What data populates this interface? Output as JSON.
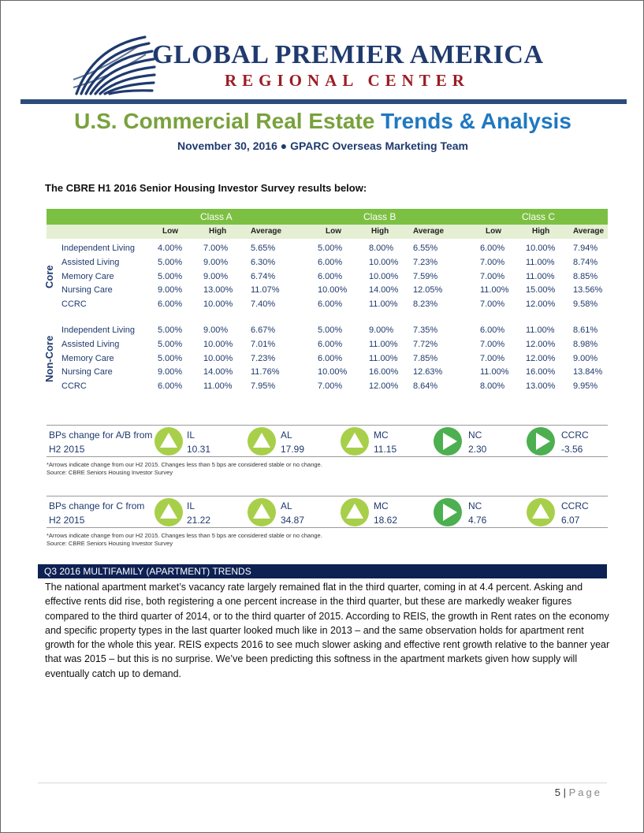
{
  "header": {
    "org_name": "GLOBAL PREMIER AMERICA",
    "org_sub": "REGIONAL CENTER",
    "title_part1": "U.S. Commercial Real Estate",
    "title_part2": "Trends & Analysis",
    "subtitle": "November 30, 2016 ● GPARC Overseas Marketing Team"
  },
  "colors": {
    "brand_navy": "#1f3a6e",
    "brand_red": "#9b1c22",
    "green": "#79a13d",
    "blue": "#1f78c1",
    "table_green": "#7cc043",
    "up_arrow": "#a8cf4a",
    "right_arrow": "#4caf50"
  },
  "intro": "The CBRE H1 2016 Senior Housing Investor Survey results below:",
  "survey": {
    "classes": [
      "Class A",
      "Class B",
      "Class C"
    ],
    "subheads": [
      "Low",
      "High",
      "Average"
    ],
    "groups": [
      {
        "label": "Core",
        "rows": [
          {
            "name": "Independent Living",
            "vals": [
              "4.00%",
              "7.00%",
              "5.65%",
              "5.00%",
              "8.00%",
              "6.55%",
              "6.00%",
              "10.00%",
              "7.94%"
            ]
          },
          {
            "name": "Assisted Living",
            "vals": [
              "5.00%",
              "9.00%",
              "6.30%",
              "6.00%",
              "10.00%",
              "7.23%",
              "7.00%",
              "11.00%",
              "8.74%"
            ]
          },
          {
            "name": "Memory Care",
            "vals": [
              "5.00%",
              "9.00%",
              "6.74%",
              "6.00%",
              "10.00%",
              "7.59%",
              "7.00%",
              "11.00%",
              "8.85%"
            ]
          },
          {
            "name": "Nursing Care",
            "vals": [
              "9.00%",
              "13.00%",
              "11.07%",
              "10.00%",
              "14.00%",
              "12.05%",
              "11.00%",
              "15.00%",
              "13.56%"
            ]
          },
          {
            "name": "CCRC",
            "vals": [
              "6.00%",
              "10.00%",
              "7.40%",
              "6.00%",
              "11.00%",
              "8.23%",
              "7.00%",
              "12.00%",
              "9.58%"
            ]
          }
        ]
      },
      {
        "label": "Non-Core",
        "rows": [
          {
            "name": "Independent Living",
            "vals": [
              "5.00%",
              "9.00%",
              "6.67%",
              "5.00%",
              "9.00%",
              "7.35%",
              "6.00%",
              "11.00%",
              "8.61%"
            ]
          },
          {
            "name": "Assisted Living",
            "vals": [
              "5.00%",
              "10.00%",
              "7.01%",
              "6.00%",
              "11.00%",
              "7.72%",
              "7.00%",
              "12.00%",
              "8.98%"
            ]
          },
          {
            "name": "Memory Care",
            "vals": [
              "5.00%",
              "10.00%",
              "7.23%",
              "6.00%",
              "11.00%",
              "7.85%",
              "7.00%",
              "12.00%",
              "9.00%"
            ]
          },
          {
            "name": "Nursing Care",
            "vals": [
              "9.00%",
              "14.00%",
              "11.76%",
              "10.00%",
              "16.00%",
              "12.63%",
              "11.00%",
              "16.00%",
              "13.84%"
            ]
          },
          {
            "name": "CCRC",
            "vals": [
              "6.00%",
              "11.00%",
              "7.95%",
              "7.00%",
              "12.00%",
              "8.64%",
              "8.00%",
              "13.00%",
              "9.95%"
            ]
          }
        ]
      }
    ]
  },
  "bp_ab": {
    "label": "BPs change for A/B from H2 2015",
    "items": [
      {
        "name": "IL",
        "value": "10.31",
        "icon": "up-arrow-icon"
      },
      {
        "name": "AL",
        "value": "17.99",
        "icon": "up-arrow-icon"
      },
      {
        "name": "MC",
        "value": "11.15",
        "icon": "up-arrow-icon"
      },
      {
        "name": "NC",
        "value": "2.30",
        "icon": "right-arrow-icon"
      },
      {
        "name": "CCRC",
        "value": "-3.56",
        "icon": "right-arrow-icon"
      }
    ],
    "note1": "*Arrows indicate change from our H2 2015. Changes less than 5 bps are considered stable or no change.",
    "note2": "Source: CBRE Seniors Housing Investor Survey"
  },
  "bp_c": {
    "label": "BPs change for C from H2 2015",
    "items": [
      {
        "name": "IL",
        "value": "21.22",
        "icon": "up-arrow-icon"
      },
      {
        "name": "AL",
        "value": "34.87",
        "icon": "up-arrow-icon"
      },
      {
        "name": "MC",
        "value": "18.62",
        "icon": "up-arrow-icon"
      },
      {
        "name": "NC",
        "value": "4.76",
        "icon": "right-arrow-icon"
      },
      {
        "name": "CCRC",
        "value": "6.07",
        "icon": "up-arrow-icon"
      }
    ],
    "note1": "*Arrows indicate change from our H2 2015. Changes less than 5 bps are considered stable or no change.",
    "note2": "Source: CBRE Seniors Housing Investor Survey"
  },
  "section": {
    "heading": "Q3 2016 MULTIFAMILY (APARTMENT) TRENDS",
    "body": "The national apartment market’s vacancy rate largely remained flat in the third quarter, coming in at 4.4 percent. Asking and effective rents did rise, both registering a one percent increase in the third quarter, but these are markedly weaker figures compared to the third quarter of 2014, or to the third quarter of 2015.  According to REIS, the growth in Rent rates on the economy and specific property types in the last quarter looked much like in 2013 – and the same observation holds for apartment rent growth for the whole this year.  REIS expects 2016 to see much slower asking and effective rent growth relative to the banner year that was 2015 – but this is no surprise.  We’ve been predicting this softness in the apartment markets given how supply will eventually catch up to demand."
  },
  "footer": {
    "page_number": "5",
    "separator": "|",
    "page_word": "Page"
  }
}
